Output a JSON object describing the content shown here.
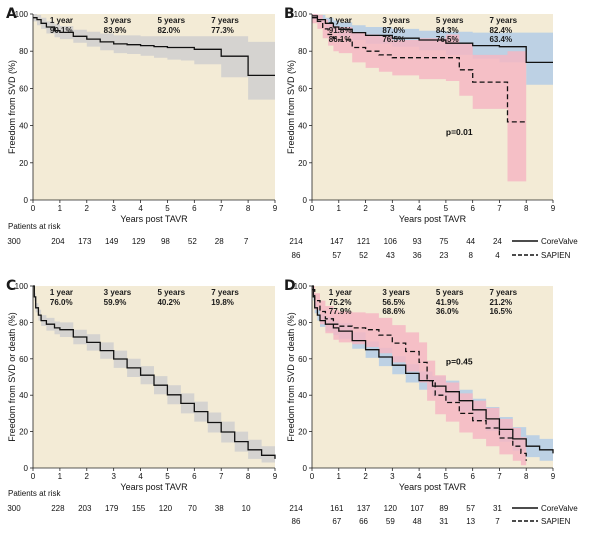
{
  "colors": {
    "background": "#f3ebd6",
    "band_corevalve": "#b3cce6",
    "band_sapien": "#f5b7c3",
    "band_overall": "#cfcfcf",
    "line": "#111111"
  },
  "chart_data": [
    {
      "id": "A",
      "type": "line",
      "panel_label": "A",
      "ylabel": "Freedom from SVD (%)",
      "xlabel": "Years post TAVR",
      "xlim": [
        0,
        9
      ],
      "ylim": [
        0,
        100
      ],
      "xticks": [
        "0",
        "1",
        "2",
        "3",
        "4",
        "5",
        "6",
        "7",
        "8",
        "9"
      ],
      "yticks": [
        "0",
        "20",
        "40",
        "60",
        "80",
        "100"
      ],
      "milestones": [
        {
          "label": "1 year",
          "values": [
            "90.1%"
          ]
        },
        {
          "label": "3 years",
          "values": [
            "83.9%"
          ]
        },
        {
          "label": "5 years",
          "values": [
            "82.0%"
          ]
        },
        {
          "label": "7 years",
          "values": [
            "77.3%"
          ]
        }
      ],
      "series": [
        {
          "style": "solid",
          "band": "overall",
          "x": [
            0,
            0.15,
            0.3,
            0.5,
            0.8,
            1.0,
            1.5,
            2.0,
            2.5,
            3.0,
            3.5,
            4.0,
            4.5,
            5.0,
            5.5,
            6.0,
            7.0,
            7.5,
            8.0,
            9.0
          ],
          "y": [
            98,
            97,
            95,
            93,
            91,
            90.1,
            88,
            86.5,
            85,
            83.9,
            83.5,
            83,
            82.5,
            82,
            82,
            81,
            77.3,
            77.3,
            67,
            67
          ],
          "lo": [
            96,
            94,
            92,
            89.5,
            87.5,
            86.5,
            84.5,
            82.5,
            80.5,
            79,
            78.5,
            77.5,
            76.5,
            75.5,
            75,
            73,
            66,
            66,
            54,
            54
          ],
          "hi": [
            100,
            99.5,
            98,
            96,
            94.5,
            93.5,
            91.5,
            90.5,
            89.5,
            88.5,
            88.5,
            88,
            88,
            88,
            88,
            88,
            88,
            88,
            85,
            85
          ]
        }
      ],
      "risk_title": "Patients at risk",
      "risk_rows": [
        [
          "300",
          "204",
          "173",
          "149",
          "129",
          "98",
          "52",
          "28",
          "7"
        ]
      ]
    },
    {
      "id": "B",
      "type": "line",
      "panel_label": "B",
      "ylabel": "Freedom from SVD (%)",
      "xlabel": "Years post TAVR",
      "xlim": [
        0,
        9
      ],
      "ylim": [
        0,
        100
      ],
      "xticks": [
        "0",
        "1",
        "2",
        "3",
        "4",
        "5",
        "6",
        "7",
        "8",
        "9"
      ],
      "yticks": [
        "0",
        "20",
        "40",
        "60",
        "80",
        "100"
      ],
      "milestones": [
        {
          "label": "1 year",
          "values": [
            "91.8%",
            "86.1%"
          ]
        },
        {
          "label": "3 years",
          "values": [
            "87.0%",
            "76.5%"
          ]
        },
        {
          "label": "5 years",
          "values": [
            "84.3%",
            "76.5%"
          ]
        },
        {
          "label": "7 years",
          "values": [
            "82.4%",
            "63.4%"
          ]
        }
      ],
      "p_value": "p=0.01",
      "p_pos": [
        5.0,
        0.35
      ],
      "series": [
        {
          "name": "CoreValve",
          "style": "solid",
          "band": "corevalve",
          "x": [
            0,
            0.2,
            0.5,
            0.8,
            1.0,
            1.5,
            2.0,
            3.0,
            4.0,
            5.0,
            6.0,
            7.0,
            7.5,
            8.0,
            9.0
          ],
          "y": [
            99,
            97,
            95,
            93,
            91.8,
            90,
            88.5,
            87,
            86,
            84.3,
            83,
            82.4,
            82.4,
            74,
            74
          ],
          "lo": [
            97,
            95,
            92,
            89.5,
            88,
            86,
            84,
            82.5,
            80.5,
            78,
            76,
            74,
            74,
            62,
            62
          ],
          "hi": [
            100,
            99.5,
            98,
            96.5,
            95.5,
            94,
            93,
            92,
            91,
            90.5,
            90,
            90,
            90,
            90,
            90
          ]
        },
        {
          "name": "SAPIEN",
          "style": "dashed",
          "band": "sapien",
          "x": [
            0,
            0.2,
            0.4,
            0.6,
            0.8,
            1.0,
            1.5,
            2.0,
            2.5,
            3.0,
            4.0,
            5.0,
            5.5,
            6.0,
            7.0,
            7.3,
            8.0
          ],
          "y": [
            98,
            96,
            92,
            89,
            87,
            86.1,
            82,
            80,
            78,
            76.5,
            76.5,
            76.5,
            70,
            63.4,
            63.4,
            42,
            42
          ],
          "lo": [
            95,
            92,
            87,
            83,
            80,
            79,
            74,
            71,
            69,
            67,
            65,
            64,
            56,
            49,
            49,
            10,
            10
          ],
          "hi": [
            100,
            99.5,
            97,
            95,
            93.5,
            93,
            90,
            89,
            88,
            86,
            87,
            89,
            84,
            78,
            78,
            80,
            80
          ]
        }
      ],
      "risk_rows": [
        [
          "214",
          "147",
          "121",
          "106",
          "93",
          "75",
          "44",
          "24"
        ],
        [
          "86",
          "57",
          "52",
          "43",
          "36",
          "23",
          "8",
          "4"
        ]
      ],
      "legend": [
        "CoreValve",
        "SAPIEN"
      ]
    },
    {
      "id": "C",
      "type": "line",
      "panel_label": "C",
      "ylabel": "Freedom from SVD or death (%)",
      "xlabel": "Years post TAVR",
      "xlim": [
        0,
        9
      ],
      "ylim": [
        0,
        100
      ],
      "xticks": [
        "0",
        "1",
        "2",
        "3",
        "4",
        "5",
        "6",
        "7",
        "8",
        "9"
      ],
      "yticks": [
        "0",
        "20",
        "40",
        "60",
        "80",
        "100"
      ],
      "milestones": [
        {
          "label": "1 year",
          "values": [
            "76.0%"
          ]
        },
        {
          "label": "3 years",
          "values": [
            "59.9%"
          ]
        },
        {
          "label": "5 years",
          "values": [
            "40.2%"
          ]
        },
        {
          "label": "7 years",
          "values": [
            "19.8%"
          ]
        }
      ],
      "series": [
        {
          "style": "solid",
          "band": "overall",
          "x": [
            0,
            0.05,
            0.1,
            0.2,
            0.3,
            0.5,
            0.8,
            1.0,
            1.5,
            2.0,
            2.5,
            3.0,
            3.5,
            4.0,
            4.5,
            5.0,
            5.5,
            6.0,
            6.5,
            7.0,
            7.5,
            8.0,
            8.5,
            9.0
          ],
          "y": [
            100,
            94,
            88,
            84,
            81,
            79,
            77,
            76,
            72,
            69,
            64.5,
            59.9,
            55,
            51,
            45.5,
            40.2,
            35.5,
            31,
            25,
            19.8,
            14.5,
            10,
            7,
            5
          ],
          "lo": [
            100,
            92,
            85.5,
            81,
            78,
            75.5,
            73.5,
            72,
            68,
            64.5,
            60,
            55,
            50,
            46,
            40.5,
            35,
            30,
            25.5,
            19.5,
            14,
            9,
            5,
            3,
            2
          ],
          "hi": [
            100,
            96,
            90.5,
            87,
            84,
            82.5,
            80.5,
            80,
            76,
            73.5,
            69,
            64.5,
            60,
            56,
            50.5,
            45.5,
            41,
            36.5,
            30.5,
            25.5,
            20,
            15.5,
            12,
            9
          ]
        }
      ],
      "risk_title": "Patients at risk",
      "risk_rows": [
        [
          "300",
          "228",
          "203",
          "179",
          "155",
          "120",
          "70",
          "38",
          "10"
        ]
      ]
    },
    {
      "id": "D",
      "type": "line",
      "panel_label": "D",
      "ylabel": "Freedom from SVD or death (%)",
      "xlabel": "Years post TAVR",
      "xlim": [
        0,
        9
      ],
      "ylim": [
        0,
        100
      ],
      "xticks": [
        "0",
        "1",
        "2",
        "3",
        "4",
        "5",
        "6",
        "7",
        "8",
        "9"
      ],
      "yticks": [
        "0",
        "20",
        "40",
        "60",
        "80",
        "100"
      ],
      "milestones": [
        {
          "label": "1 year",
          "values": [
            "75.2%",
            "77.9%"
          ]
        },
        {
          "label": "3 years",
          "values": [
            "56.5%",
            "68.6%"
          ]
        },
        {
          "label": "5 years",
          "values": [
            "41.9%",
            "36.0%"
          ]
        },
        {
          "label": "7 years",
          "values": [
            "21.2%",
            "16.5%"
          ]
        }
      ],
      "p_value": "p=0.45",
      "p_pos": [
        5.0,
        0.57
      ],
      "series": [
        {
          "name": "CoreValve",
          "style": "solid",
          "band": "corevalve",
          "x": [
            0,
            0.05,
            0.1,
            0.2,
            0.3,
            0.5,
            0.8,
            1.0,
            1.5,
            2.0,
            2.5,
            3.0,
            3.5,
            4.0,
            4.5,
            5.0,
            5.5,
            6.0,
            6.5,
            7.0,
            7.5,
            8.0,
            8.5,
            9.0
          ],
          "y": [
            100,
            94,
            88,
            84,
            81,
            79,
            77,
            75.2,
            70,
            65,
            61,
            56.5,
            52,
            48,
            45,
            41.9,
            37,
            32,
            27,
            21.2,
            16,
            12,
            10,
            8
          ],
          "lo": [
            100,
            92,
            85,
            81,
            77.5,
            75,
            73,
            71,
            65.5,
            60.5,
            56,
            51.5,
            47,
            43,
            39.5,
            36,
            31,
            26,
            20.5,
            14.5,
            9.5,
            6,
            4,
            3
          ],
          "hi": [
            100,
            96,
            91,
            87,
            84.5,
            83,
            81,
            79.5,
            74.5,
            69.5,
            66,
            61.5,
            57,
            53,
            50.5,
            48,
            43,
            38,
            33.5,
            28,
            22.5,
            18,
            16,
            14
          ]
        },
        {
          "name": "SAPIEN",
          "style": "dashed",
          "band": "sapien",
          "x": [
            0,
            0.1,
            0.3,
            0.5,
            0.8,
            1.0,
            1.5,
            2.0,
            2.5,
            3.0,
            3.5,
            4.0,
            4.3,
            4.6,
            5.0,
            5.5,
            6.0,
            6.5,
            7.0,
            7.5,
            7.8,
            8.0
          ],
          "y": [
            98,
            92,
            86,
            82,
            79,
            77.9,
            77,
            76,
            73,
            68.6,
            64,
            58,
            48,
            40,
            36,
            30,
            26,
            22,
            16.5,
            12,
            8,
            4
          ],
          "lo": [
            95,
            87,
            79,
            74,
            70.5,
            69,
            68,
            66.5,
            63,
            58,
            53,
            47,
            37,
            29.5,
            25.5,
            19.5,
            16,
            12,
            7.5,
            4,
            1.5,
            0
          ],
          "hi": [
            100,
            96,
            92,
            89,
            87,
            86,
            85.5,
            85,
            82.5,
            78.5,
            74.5,
            69,
            59,
            51,
            47,
            41,
            37,
            33,
            27,
            22,
            17,
            13
          ]
        }
      ],
      "risk_rows": [
        [
          "214",
          "161",
          "137",
          "120",
          "107",
          "89",
          "57",
          "31"
        ],
        [
          "86",
          "67",
          "66",
          "59",
          "48",
          "31",
          "13",
          "7"
        ]
      ],
      "legend": [
        "CoreValve",
        "SAPIEN"
      ]
    }
  ]
}
